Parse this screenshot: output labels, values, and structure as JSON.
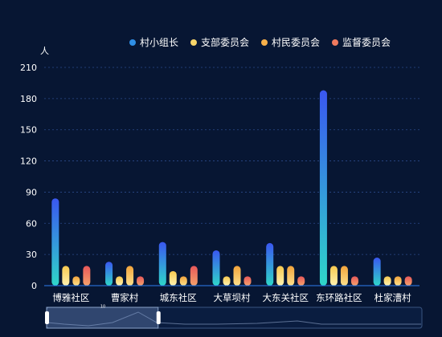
{
  "chart_data": {
    "type": "bar",
    "y_unit": "人",
    "ylim": [
      0,
      210
    ],
    "yticks": [
      0,
      30,
      60,
      90,
      120,
      150,
      180,
      210
    ],
    "grid": true,
    "legend_position": "top-right",
    "categories": [
      "博雅社区",
      "曹家村",
      "城东社区",
      "大草坝村",
      "大东关社区",
      "东环路社区",
      "杜家漕村"
    ],
    "series": [
      {
        "name": "村小组长",
        "color": "#2f8fe6",
        "gradient": [
          "#3a57f0",
          "#2fd6c8"
        ],
        "values": [
          84,
          23,
          42,
          34,
          41,
          188,
          27
        ]
      },
      {
        "name": "支部委员会",
        "color": "#f7d56a",
        "gradient": [
          "#f7c94f",
          "#fff2b0"
        ],
        "values": [
          19,
          9,
          14,
          9,
          19,
          19,
          9
        ]
      },
      {
        "name": "村民委员会",
        "color": "#f7b04a",
        "gradient": [
          "#f2a43c",
          "#fde08a"
        ],
        "values": [
          9,
          19,
          9,
          19,
          19,
          19,
          9
        ]
      },
      {
        "name": "监督委员会",
        "color": "#f07a5e",
        "gradient": [
          "#e8585a",
          "#f4a16a"
        ],
        "values": [
          19,
          9,
          19,
          9,
          9,
          9,
          9
        ]
      }
    ],
    "datazoom": {
      "label": "10",
      "window_start_pct": 0,
      "window_end_pct": 25
    }
  }
}
